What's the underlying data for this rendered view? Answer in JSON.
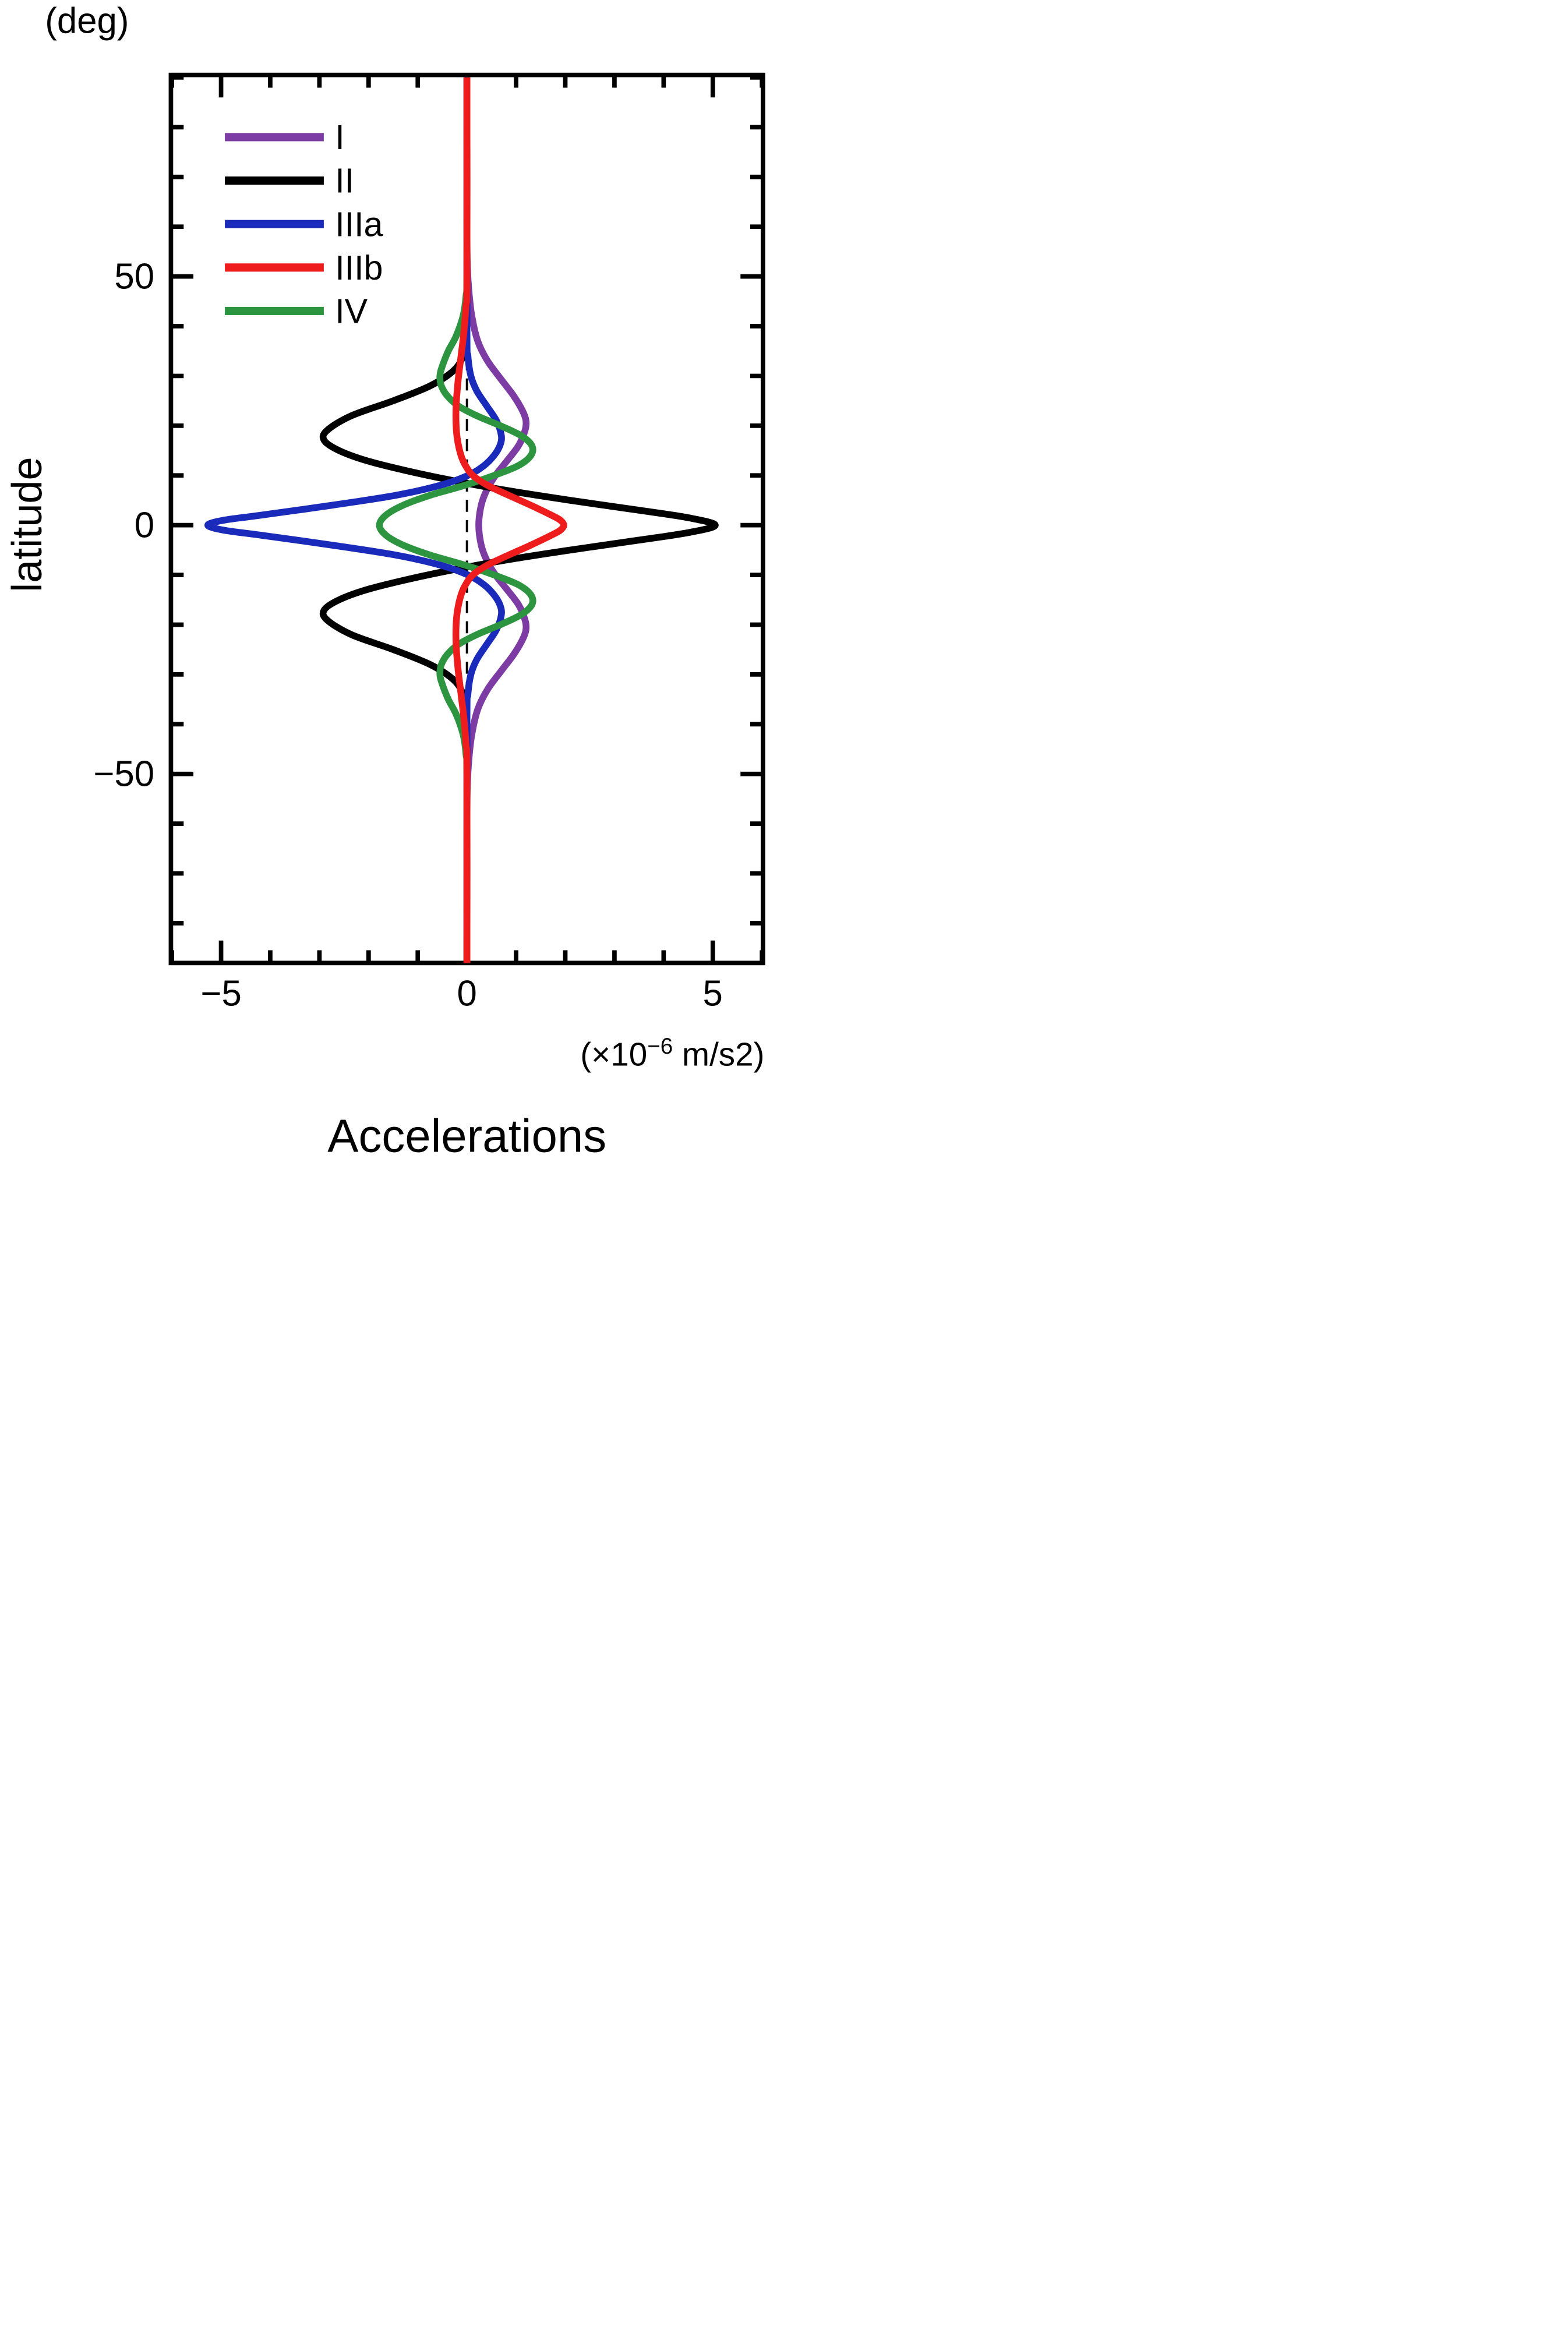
{
  "labels": {
    "deg": "(deg)",
    "ylabel": "latitude",
    "title": "Accelerations",
    "xunit_prefix": "(×10",
    "xunit_sup": "−6",
    "xunit_suffix": " m/s2)"
  },
  "ticks": {
    "y_labels": [
      "50",
      "0",
      "−50"
    ],
    "x_labels": [
      "−5",
      "0",
      "5"
    ]
  },
  "legend": {
    "items": [
      {
        "label": "I",
        "color": "#7d3ca4"
      },
      {
        "label": "II",
        "color": "#000000"
      },
      {
        "label": "IIIa",
        "color": "#1a2aba"
      },
      {
        "label": "IIIb",
        "color": "#ee1c1c"
      },
      {
        "label": "IV",
        "color": "#2d9440"
      }
    ]
  },
  "chart_data": {
    "type": "line",
    "title": "Accelerations",
    "xlabel": "Accelerations (×10−6 m/s2)",
    "ylabel": "latitude (deg)",
    "xlim": [
      -6.02,
      6.02
    ],
    "ylim": [
      -88,
      90.5
    ],
    "x_ticks_major": [
      -5,
      0,
      5
    ],
    "x_ticks_minor": [
      -6,
      -4,
      -3,
      -2,
      -1,
      1,
      2,
      3,
      4,
      6
    ],
    "y_ticks_major": [
      -50,
      0,
      50
    ],
    "y_ticks_minor": [
      -80,
      -70,
      -60,
      -40,
      -30,
      -20,
      -10,
      10,
      20,
      30,
      40,
      60,
      70,
      80,
      90
    ],
    "grid": false,
    "legend_position": "upper-left-inside",
    "zero_line": {
      "x": 0,
      "style": "dashed",
      "color": "#000000"
    },
    "series": [
      {
        "name": "I",
        "color": "#7d3ca4",
        "points": [
          [
            90,
            0
          ],
          [
            60,
            0
          ],
          [
            52,
            0.01
          ],
          [
            47,
            0.04
          ],
          [
            42,
            0.1
          ],
          [
            37,
            0.22
          ],
          [
            33,
            0.42
          ],
          [
            29,
            0.72
          ],
          [
            26,
            0.95
          ],
          [
            23,
            1.13
          ],
          [
            21,
            1.2
          ],
          [
            19,
            1.18
          ],
          [
            16,
            1.05
          ],
          [
            13,
            0.82
          ],
          [
            10,
            0.58
          ],
          [
            7,
            0.4
          ],
          [
            4,
            0.29
          ],
          [
            0,
            0.24
          ],
          [
            -4,
            0.29
          ],
          [
            -7,
            0.4
          ],
          [
            -10,
            0.58
          ],
          [
            -13,
            0.82
          ],
          [
            -16,
            1.05
          ],
          [
            -19,
            1.18
          ],
          [
            -21,
            1.2
          ],
          [
            -23,
            1.13
          ],
          [
            -26,
            0.95
          ],
          [
            -29,
            0.72
          ],
          [
            -33,
            0.42
          ],
          [
            -37,
            0.22
          ],
          [
            -42,
            0.1
          ],
          [
            -47,
            0.04
          ],
          [
            -52,
            0.01
          ],
          [
            -60,
            0
          ],
          [
            -90,
            0
          ]
        ]
      },
      {
        "name": "II",
        "color": "#000000",
        "points": [
          [
            90,
            0
          ],
          [
            45,
            0
          ],
          [
            38,
            -0.02
          ],
          [
            34,
            -0.08
          ],
          [
            31,
            -0.28
          ],
          [
            28,
            -0.75
          ],
          [
            25,
            -1.5
          ],
          [
            22,
            -2.35
          ],
          [
            19,
            -2.85
          ],
          [
            17,
            -2.9
          ],
          [
            15,
            -2.6
          ],
          [
            13,
            -2.05
          ],
          [
            11,
            -1.25
          ],
          [
            9,
            -0.3
          ],
          [
            7,
            0.8
          ],
          [
            5,
            2.1
          ],
          [
            3,
            3.5
          ],
          [
            1.5,
            4.5
          ],
          [
            0,
            5.05
          ],
          [
            -1.5,
            4.5
          ],
          [
            -3,
            3.5
          ],
          [
            -5,
            2.1
          ],
          [
            -7,
            0.8
          ],
          [
            -9,
            -0.3
          ],
          [
            -11,
            -1.25
          ],
          [
            -13,
            -2.05
          ],
          [
            -15,
            -2.6
          ],
          [
            -17,
            -2.9
          ],
          [
            -19,
            -2.85
          ],
          [
            -22,
            -2.35
          ],
          [
            -25,
            -1.5
          ],
          [
            -28,
            -0.75
          ],
          [
            -31,
            -0.28
          ],
          [
            -34,
            -0.08
          ],
          [
            -38,
            -0.02
          ],
          [
            -45,
            0
          ],
          [
            -90,
            0
          ]
        ]
      },
      {
        "name": "IIIa",
        "color": "#1a2aba",
        "points": [
          [
            90,
            0
          ],
          [
            40,
            0
          ],
          [
            34,
            0.02
          ],
          [
            30,
            0.08
          ],
          [
            27,
            0.2
          ],
          [
            24,
            0.4
          ],
          [
            21,
            0.6
          ],
          [
            18,
            0.7
          ],
          [
            16,
            0.67
          ],
          [
            14,
            0.55
          ],
          [
            12,
            0.35
          ],
          [
            10,
            0.02
          ],
          [
            8,
            -0.55
          ],
          [
            6,
            -1.45
          ],
          [
            4,
            -2.75
          ],
          [
            2,
            -4.2
          ],
          [
            1,
            -4.95
          ],
          [
            0,
            -5.27
          ],
          [
            -1,
            -4.95
          ],
          [
            -2,
            -4.2
          ],
          [
            -4,
            -2.75
          ],
          [
            -6,
            -1.45
          ],
          [
            -8,
            -0.55
          ],
          [
            -10,
            0.02
          ],
          [
            -12,
            0.35
          ],
          [
            -14,
            0.55
          ],
          [
            -16,
            0.67
          ],
          [
            -18,
            0.7
          ],
          [
            -21,
            0.6
          ],
          [
            -24,
            0.4
          ],
          [
            -27,
            0.2
          ],
          [
            -30,
            0.08
          ],
          [
            -34,
            0.02
          ],
          [
            -40,
            0
          ],
          [
            -90,
            0
          ]
        ]
      },
      {
        "name": "IV",
        "color": "#2d9440",
        "points": [
          [
            90,
            0
          ],
          [
            52,
            0
          ],
          [
            46,
            -0.02
          ],
          [
            42,
            -0.08
          ],
          [
            38,
            -0.22
          ],
          [
            35,
            -0.38
          ],
          [
            32,
            -0.5
          ],
          [
            30,
            -0.55
          ],
          [
            28,
            -0.52
          ],
          [
            26,
            -0.4
          ],
          [
            24,
            -0.18
          ],
          [
            22,
            0.2
          ],
          [
            20,
            0.68
          ],
          [
            18,
            1.1
          ],
          [
            16,
            1.32
          ],
          [
            14,
            1.3
          ],
          [
            12,
            1.05
          ],
          [
            10,
            0.55
          ],
          [
            8,
            -0.05
          ],
          [
            6,
            -0.75
          ],
          [
            4,
            -1.3
          ],
          [
            2,
            -1.65
          ],
          [
            0,
            -1.78
          ],
          [
            -2,
            -1.65
          ],
          [
            -4,
            -1.3
          ],
          [
            -6,
            -0.75
          ],
          [
            -8,
            -0.05
          ],
          [
            -10,
            0.55
          ],
          [
            -12,
            1.05
          ],
          [
            -14,
            1.3
          ],
          [
            -16,
            1.32
          ],
          [
            -18,
            1.1
          ],
          [
            -20,
            0.68
          ],
          [
            -22,
            0.2
          ],
          [
            -24,
            -0.18
          ],
          [
            -26,
            -0.4
          ],
          [
            -28,
            -0.52
          ],
          [
            -30,
            -0.55
          ],
          [
            -32,
            -0.5
          ],
          [
            -35,
            -0.38
          ],
          [
            -38,
            -0.22
          ],
          [
            -42,
            -0.08
          ],
          [
            -46,
            -0.02
          ],
          [
            -52,
            0
          ],
          [
            -90,
            0
          ]
        ]
      },
      {
        "name": "IIIb",
        "color": "#ee1c1c",
        "points": [
          [
            90,
            0
          ],
          [
            50,
            0
          ],
          [
            44,
            -0.02
          ],
          [
            39,
            -0.06
          ],
          [
            34,
            -0.12
          ],
          [
            29,
            -0.18
          ],
          [
            24,
            -0.22
          ],
          [
            20,
            -0.22
          ],
          [
            17,
            -0.19
          ],
          [
            14,
            -0.12
          ],
          [
            12,
            -0.03
          ],
          [
            10,
            0.12
          ],
          [
            8,
            0.42
          ],
          [
            6,
            0.85
          ],
          [
            4,
            1.3
          ],
          [
            2,
            1.72
          ],
          [
            1,
            1.9
          ],
          [
            0,
            1.97
          ],
          [
            -1,
            1.9
          ],
          [
            -2,
            1.72
          ],
          [
            -4,
            1.3
          ],
          [
            -6,
            0.85
          ],
          [
            -8,
            0.42
          ],
          [
            -10,
            0.12
          ],
          [
            -12,
            -0.03
          ],
          [
            -14,
            -0.12
          ],
          [
            -17,
            -0.19
          ],
          [
            -20,
            -0.22
          ],
          [
            -24,
            -0.22
          ],
          [
            -29,
            -0.18
          ],
          [
            -34,
            -0.12
          ],
          [
            -39,
            -0.06
          ],
          [
            -44,
            -0.02
          ],
          [
            -50,
            0
          ],
          [
            -90,
            0
          ]
        ]
      }
    ]
  }
}
